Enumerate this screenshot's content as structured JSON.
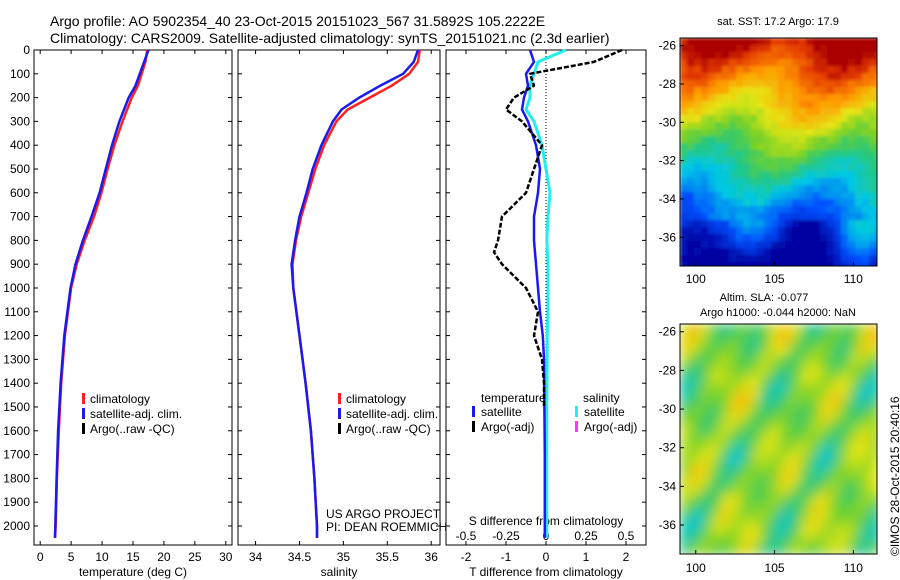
{
  "header": {
    "line1": "Argo profile: AO 5902354_40 23-Oct-2015 20151023_567 31.5892S 105.2222E",
    "line2": "Climatology: CARS2009. Satellite-adjusted climatology: synTS_20151021.nc (2.3d earlier)"
  },
  "stamp": "©IMOS 28-Oct-2015 20:40:16",
  "colors": {
    "climatology": "#ff2020",
    "satellite": "#1a1aee",
    "argo": "#000000",
    "sal_sat": "#22eeee",
    "sal_argo": "#ff33ff"
  },
  "chart_data": [
    {
      "type": "line",
      "name": "temperature_profile",
      "xlabel": "temperature (deg C)",
      "ylabel": "",
      "xlim": [
        -1,
        31
      ],
      "ylim": [
        2080,
        0
      ],
      "xticks": [
        "0",
        "5",
        "10",
        "15",
        "20",
        "25",
        "30"
      ],
      "yticks": [
        "0",
        "100",
        "200",
        "300",
        "400",
        "500",
        "600",
        "700",
        "800",
        "900",
        "1000",
        "1100",
        "1200",
        "1300",
        "1400",
        "1500",
        "1600",
        "1700",
        "1800",
        "1900",
        "2000"
      ],
      "legend": [
        "climatology",
        "satellite-adj. clim.",
        "Argo(..raw -QC)"
      ],
      "series": [
        {
          "name": "climatology",
          "depth": [
            0,
            50,
            100,
            150,
            200,
            300,
            400,
            500,
            600,
            700,
            800,
            900,
            1000,
            1200,
            1400,
            1600,
            1800,
            2000,
            2050
          ],
          "values": [
            17.3,
            17.0,
            16.4,
            15.8,
            14.8,
            13.3,
            12.0,
            10.9,
            9.9,
            8.7,
            7.2,
            5.9,
            5.0,
            4.0,
            3.4,
            3.0,
            2.7,
            2.5,
            2.4
          ]
        },
        {
          "name": "satellite-adj. clim.",
          "depth": [
            0,
            50,
            100,
            150,
            200,
            300,
            400,
            500,
            600,
            700,
            800,
            900,
            1000,
            1200,
            1400,
            1600,
            1800,
            2000,
            2050
          ],
          "values": [
            17.5,
            16.8,
            16.1,
            15.4,
            14.3,
            12.8,
            11.6,
            10.6,
            9.6,
            8.3,
            6.9,
            5.7,
            4.9,
            3.9,
            3.3,
            2.9,
            2.65,
            2.45,
            2.4
          ]
        }
      ]
    },
    {
      "type": "line",
      "name": "salinity_profile",
      "xlabel": "salinity",
      "ylabel": "",
      "xlim": [
        33.8,
        36.1
      ],
      "ylim": [
        2080,
        0
      ],
      "xticks": [
        "34",
        "34.5",
        "35",
        "35.5",
        "36"
      ],
      "legend": [
        "climatology",
        "satellite-adj. clim.",
        "Argo(..raw -QC)"
      ],
      "annotation": [
        "US ARGO PROJECT",
        "PI: DEAN ROEMMICH"
      ],
      "series": [
        {
          "name": "climatology",
          "depth": [
            0,
            50,
            100,
            150,
            200,
            250,
            300,
            400,
            500,
            600,
            700,
            800,
            900,
            1000,
            1200,
            1400,
            1600,
            1800,
            2000,
            2050
          ],
          "values": [
            35.87,
            35.85,
            35.75,
            35.55,
            35.3,
            35.05,
            34.92,
            34.78,
            34.68,
            34.6,
            34.52,
            34.46,
            34.42,
            34.43,
            34.5,
            34.57,
            34.63,
            34.67,
            34.7,
            34.7
          ]
        },
        {
          "name": "satellite-adj. clim.",
          "depth": [
            0,
            50,
            100,
            150,
            200,
            250,
            300,
            400,
            500,
            600,
            700,
            800,
            900,
            1000,
            1200,
            1400,
            1600,
            1800,
            2000,
            2050
          ],
          "values": [
            35.85,
            35.8,
            35.68,
            35.42,
            35.18,
            34.98,
            34.88,
            34.75,
            34.65,
            34.58,
            34.5,
            34.45,
            34.41,
            34.43,
            34.5,
            34.57,
            34.63,
            34.67,
            34.7,
            34.7
          ]
        }
      ]
    },
    {
      "type": "line",
      "name": "difference_profile",
      "xlabel": "T difference from climatology",
      "xlabel2": "S difference from climatology",
      "xlim": [
        -2.5,
        2.5
      ],
      "ylim": [
        2080,
        0
      ],
      "xticks": [
        "-2",
        "-1",
        "0",
        "1",
        "2"
      ],
      "xticks2": [
        "-0.5",
        "-0.25",
        "0",
        "0.25",
        "0.5"
      ],
      "legend_headers": [
        "temperature",
        "salinity"
      ],
      "legend_t": [
        "satellite",
        "Argo(-adj)"
      ],
      "legend_s": [
        "satellite",
        "Argo(-adj)"
      ],
      "series": [
        {
          "name": "temperature satellite",
          "depth": [
            0,
            50,
            100,
            150,
            200,
            250,
            300,
            400,
            500,
            600,
            700,
            800,
            900,
            1000,
            1100,
            1200,
            1300,
            1500,
            1700,
            1900,
            2050
          ],
          "values": [
            -0.4,
            -0.3,
            -0.5,
            -0.45,
            -0.55,
            -0.6,
            -0.45,
            -0.25,
            -0.15,
            -0.2,
            -0.3,
            -0.3,
            -0.25,
            -0.2,
            -0.15,
            -0.08,
            -0.05,
            -0.04,
            -0.03,
            -0.03,
            -0.03
          ]
        },
        {
          "name": "salinity satellite",
          "depth": [
            0,
            50,
            100,
            150,
            200,
            250,
            300,
            400,
            500,
            600,
            700,
            800,
            900,
            1000,
            1100,
            1200,
            1300,
            1500,
            1700,
            1900,
            2050
          ],
          "values": [
            0.5,
            -0.2,
            -0.3,
            -0.4,
            -0.4,
            -0.5,
            -0.3,
            -0.1,
            0,
            0.1,
            0.05,
            0.02,
            0.05,
            0.05,
            0.05,
            0.03,
            0.03,
            0.02,
            0.02,
            0.02,
            0.02
          ]
        },
        {
          "name": "temperature Argo(-adj)",
          "depth": [
            0,
            50,
            100,
            150,
            200,
            250,
            300,
            400,
            500,
            600,
            700,
            800,
            850,
            900,
            1000,
            1100,
            1200,
            1300,
            1400,
            1500
          ],
          "values": [
            1.9,
            1.2,
            -0.4,
            -0.3,
            -0.8,
            -1.0,
            -0.6,
            -0.1,
            -0.3,
            -0.5,
            -1.1,
            -1.2,
            -1.3,
            -1.1,
            -0.5,
            -0.2,
            -0.3,
            -0.1,
            -0.05,
            -0.05
          ]
        }
      ]
    },
    {
      "type": "heatmap",
      "name": "sst_map",
      "title": "sat. SST: 17.2 Argo: 17.9",
      "xticks": [
        "100",
        "105",
        "110"
      ],
      "yticks": [
        "-26",
        "-28",
        "-30",
        "-32",
        "-34",
        "-36"
      ],
      "xlim": [
        99,
        111.5
      ],
      "ylim": [
        -37.5,
        -25.6
      ]
    },
    {
      "type": "heatmap",
      "name": "sla_map",
      "title": "Altim. SLA: -0.077",
      "subtitle": "Argo h1000: -0.044 h2000: NaN",
      "xticks": [
        "100",
        "105",
        "110"
      ],
      "yticks": [
        "-26",
        "-28",
        "-30",
        "-32",
        "-34",
        "-36"
      ],
      "xlim": [
        99,
        111.5
      ],
      "ylim": [
        -37.5,
        -25.6
      ]
    }
  ]
}
